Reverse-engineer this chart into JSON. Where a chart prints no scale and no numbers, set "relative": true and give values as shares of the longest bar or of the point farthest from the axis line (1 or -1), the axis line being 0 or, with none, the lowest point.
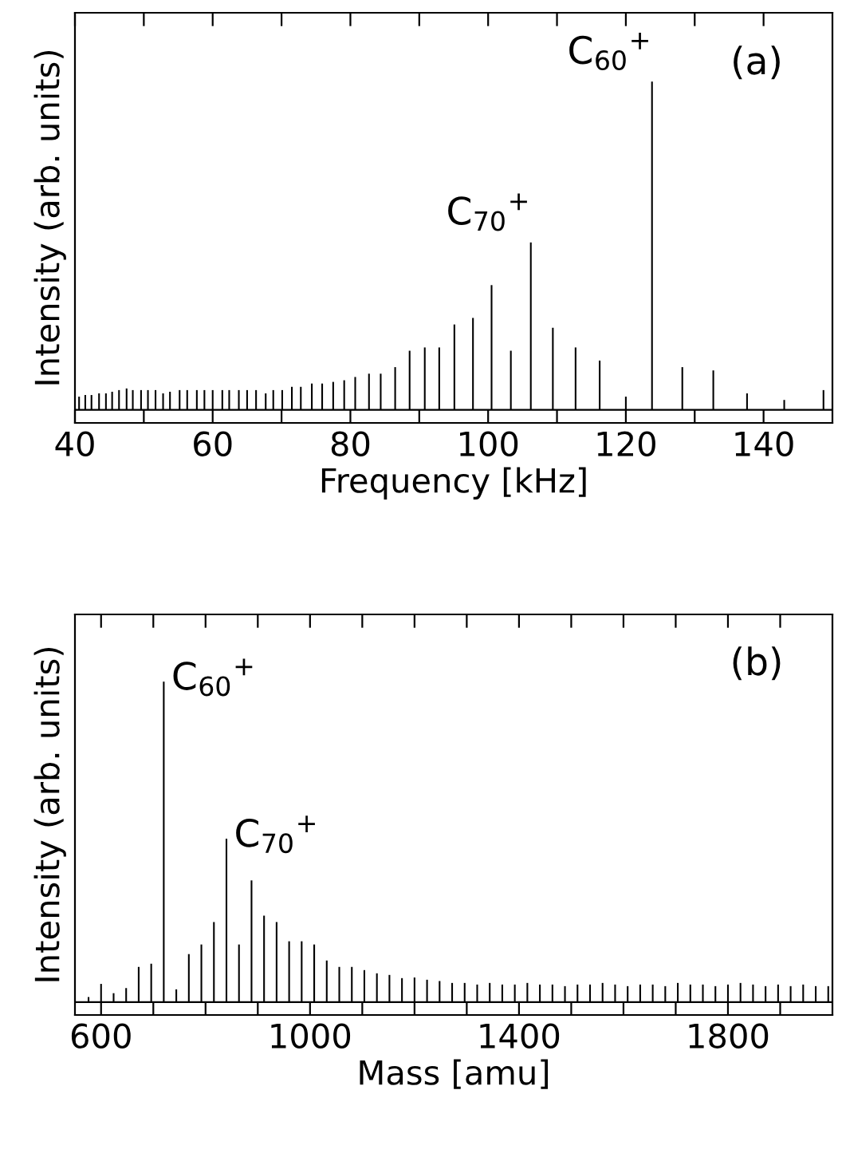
{
  "chart_data": [
    {
      "type": "bar",
      "relative": true,
      "xlabel": "Frequency [kHz]",
      "ylabel": "Intensity (arb. units)",
      "xlim": [
        40,
        150
      ],
      "xticks": [
        {
          "value": 40,
          "label": "40"
        },
        {
          "value": 50,
          "label": null
        },
        {
          "value": 60,
          "label": "60"
        },
        {
          "value": 70,
          "label": null
        },
        {
          "value": 80,
          "label": "80"
        },
        {
          "value": 90,
          "label": null
        },
        {
          "value": 100,
          "label": "100"
        },
        {
          "value": 110,
          "label": null
        },
        {
          "value": 120,
          "label": "120"
        },
        {
          "value": 130,
          "label": null
        },
        {
          "value": 140,
          "label": "140"
        }
      ],
      "tick_labels": "x",
      "grid": false,
      "legend": false,
      "x": [
        40.6,
        41.5,
        42.4,
        43.5,
        44.5,
        45.4,
        46.4,
        47.5,
        48.4,
        49.6,
        50.6,
        51.7,
        52.8,
        53.8,
        55.2,
        56.3,
        57.7,
        58.8,
        60.0,
        61.4,
        62.4,
        63.8,
        65.0,
        66.3,
        67.7,
        68.8,
        70.1,
        71.5,
        72.8,
        74.4,
        75.9,
        77.5,
        79.1,
        80.7,
        82.7,
        84.4,
        86.5,
        88.6,
        90.8,
        92.9,
        95.1,
        97.8,
        100.5,
        103.3,
        106.2,
        109.4,
        112.7,
        116.2,
        120.0,
        123.8,
        128.2,
        132.7,
        137.6,
        143.0,
        148.7
      ],
      "series": [
        {
          "color": "#000000",
          "values": [
            0.04,
            0.045,
            0.045,
            0.05,
            0.05,
            0.055,
            0.06,
            0.065,
            0.06,
            0.06,
            0.06,
            0.06,
            0.05,
            0.055,
            0.06,
            0.06,
            0.06,
            0.06,
            0.06,
            0.06,
            0.06,
            0.06,
            0.06,
            0.06,
            0.05,
            0.06,
            0.06,
            0.07,
            0.07,
            0.08,
            0.08,
            0.085,
            0.09,
            0.1,
            0.11,
            0.11,
            0.13,
            0.18,
            0.19,
            0.19,
            0.26,
            0.28,
            0.38,
            0.18,
            0.51,
            0.25,
            0.19,
            0.15,
            0.04,
            1,
            0.13,
            0.12,
            0.05,
            0.03,
            0.06
          ]
        }
      ],
      "annotations": [
        {
          "text": "C$_{60}$$^{+}$",
          "x": 123.8,
          "y": 1
        },
        {
          "text": "C$_{70}$$^{+}$",
          "x": 106.2,
          "y": 0.51
        },
        "(a)"
      ]
    },
    {
      "type": "bar",
      "relative": true,
      "xlabel": "Mass [amu]",
      "ylabel": "Intensity (arb. units)",
      "xlim": [
        550,
        2000
      ],
      "xticks": [
        {
          "value": 600,
          "label": "600"
        },
        {
          "value": 700,
          "label": null
        },
        {
          "value": 800,
          "label": null
        },
        {
          "value": 900,
          "label": null
        },
        {
          "value": 1000,
          "label": "1000"
        },
        {
          "value": 1100,
          "label": null
        },
        {
          "value": 1200,
          "label": null
        },
        {
          "value": 1300,
          "label": null
        },
        {
          "value": 1400,
          "label": "1400"
        },
        {
          "value": 1500,
          "label": null
        },
        {
          "value": 1600,
          "label": null
        },
        {
          "value": 1700,
          "label": null
        },
        {
          "value": 1800,
          "label": "1800"
        },
        {
          "value": 1900,
          "label": null
        }
      ],
      "tick_labels": "x",
      "grid": false,
      "legend": false,
      "x": [
        576,
        600,
        624,
        648,
        672,
        696,
        720,
        744,
        768,
        792,
        816,
        840,
        864,
        888,
        912,
        936,
        960,
        984,
        1008,
        1032,
        1056,
        1080,
        1104,
        1128,
        1152,
        1176,
        1200,
        1224,
        1248,
        1272,
        1296,
        1320,
        1344,
        1368,
        1392,
        1416,
        1440,
        1464,
        1488,
        1512,
        1536,
        1560,
        1584,
        1608,
        1632,
        1656,
        1680,
        1704,
        1728,
        1752,
        1776,
        1800,
        1824,
        1848,
        1872,
        1896,
        1920,
        1944,
        1968,
        1992
      ],
      "series": [
        {
          "color": "#000000",
          "values": [
            0.016,
            0.057,
            0.028,
            0.044,
            0.11,
            0.12,
            1,
            0.04,
            0.15,
            0.18,
            0.25,
            0.51,
            0.18,
            0.38,
            0.27,
            0.25,
            0.19,
            0.19,
            0.18,
            0.13,
            0.11,
            0.11,
            0.1,
            0.09,
            0.085,
            0.075,
            0.077,
            0.07,
            0.066,
            0.06,
            0.06,
            0.055,
            0.06,
            0.055,
            0.055,
            0.06,
            0.055,
            0.055,
            0.05,
            0.055,
            0.055,
            0.06,
            0.055,
            0.05,
            0.055,
            0.055,
            0.05,
            0.06,
            0.055,
            0.055,
            0.05,
            0.055,
            0.06,
            0.055,
            0.05,
            0.055,
            0.05,
            0.055,
            0.05,
            0.05
          ]
        }
      ],
      "annotations": [
        {
          "text": "C$_{60}$$^{+}$",
          "x": 720,
          "y": 1
        },
        {
          "text": "C$_{70}$$^{+}$",
          "x": 840,
          "y": 0.51
        },
        "(b)"
      ]
    }
  ]
}
